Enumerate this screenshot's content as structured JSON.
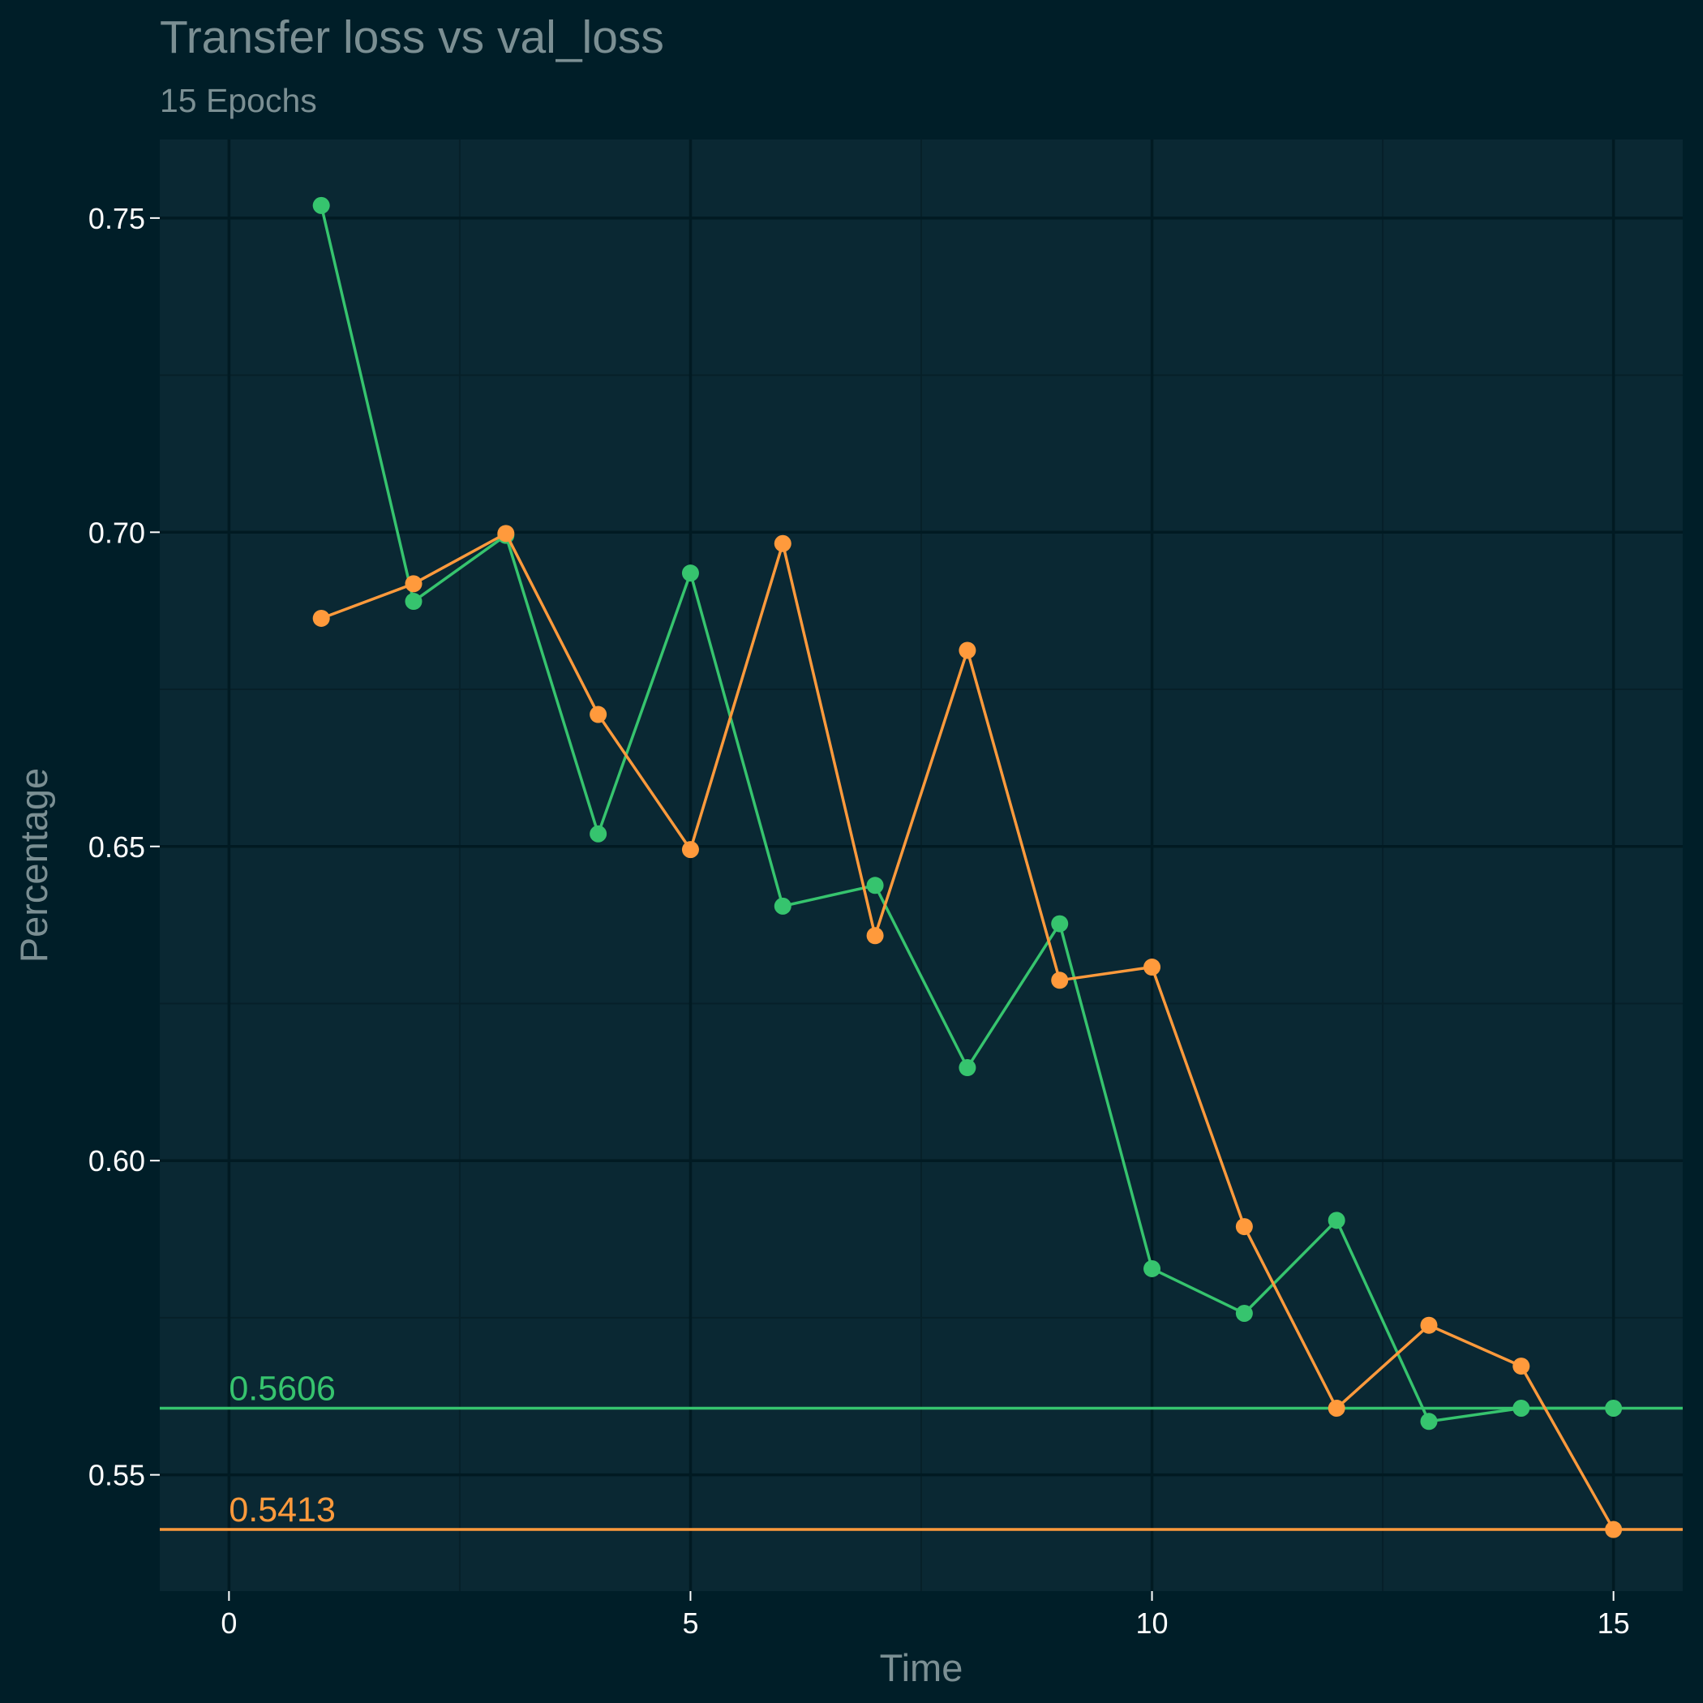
{
  "chart_data": {
    "type": "line",
    "title": "Transfer loss vs val_loss",
    "subtitle": "15 Epochs",
    "xlabel": "Time",
    "ylabel": "Percentage",
    "xlim": [
      -0.75,
      15.75
    ],
    "ylim": [
      0.5315,
      0.7625
    ],
    "x_ticks": [
      0,
      5,
      10,
      15
    ],
    "x_tick_labels": [
      "0",
      "5",
      "10",
      "15"
    ],
    "y_ticks": [
      0.55,
      0.6,
      0.65,
      0.7,
      0.75
    ],
    "y_tick_labels": [
      "0.55",
      "0.60",
      "0.65",
      "0.70",
      "0.75"
    ],
    "grid": true,
    "x": [
      1,
      2,
      3,
      4,
      5,
      6,
      7,
      8,
      9,
      10,
      11,
      12,
      13,
      14,
      15
    ],
    "series": [
      {
        "color": "#36c46e",
        "values": [
          0.752,
          0.689,
          0.6995,
          0.652,
          0.6935,
          0.6405,
          0.6438,
          0.6148,
          0.6377,
          0.5828,
          0.5757,
          0.5905,
          0.5585,
          0.5606,
          0.5606
        ]
      },
      {
        "color": "#ff9a3c",
        "values": [
          0.6863,
          0.6918,
          0.6998,
          0.671,
          0.6495,
          0.6982,
          0.6358,
          0.6812,
          0.6287,
          0.6308,
          0.5895,
          0.5606,
          0.5738,
          0.5673,
          0.5413
        ]
      }
    ],
    "reference_lines": [
      {
        "value": 0.5606,
        "label": "0.5606",
        "color": "#36c46e"
      },
      {
        "value": 0.5413,
        "label": "0.5413",
        "color": "#ff9a3c"
      }
    ]
  },
  "colors": {
    "background": "#001e28",
    "panel": "#0a2833",
    "grid_major": "#011a22",
    "grid_minor": "#072029"
  }
}
